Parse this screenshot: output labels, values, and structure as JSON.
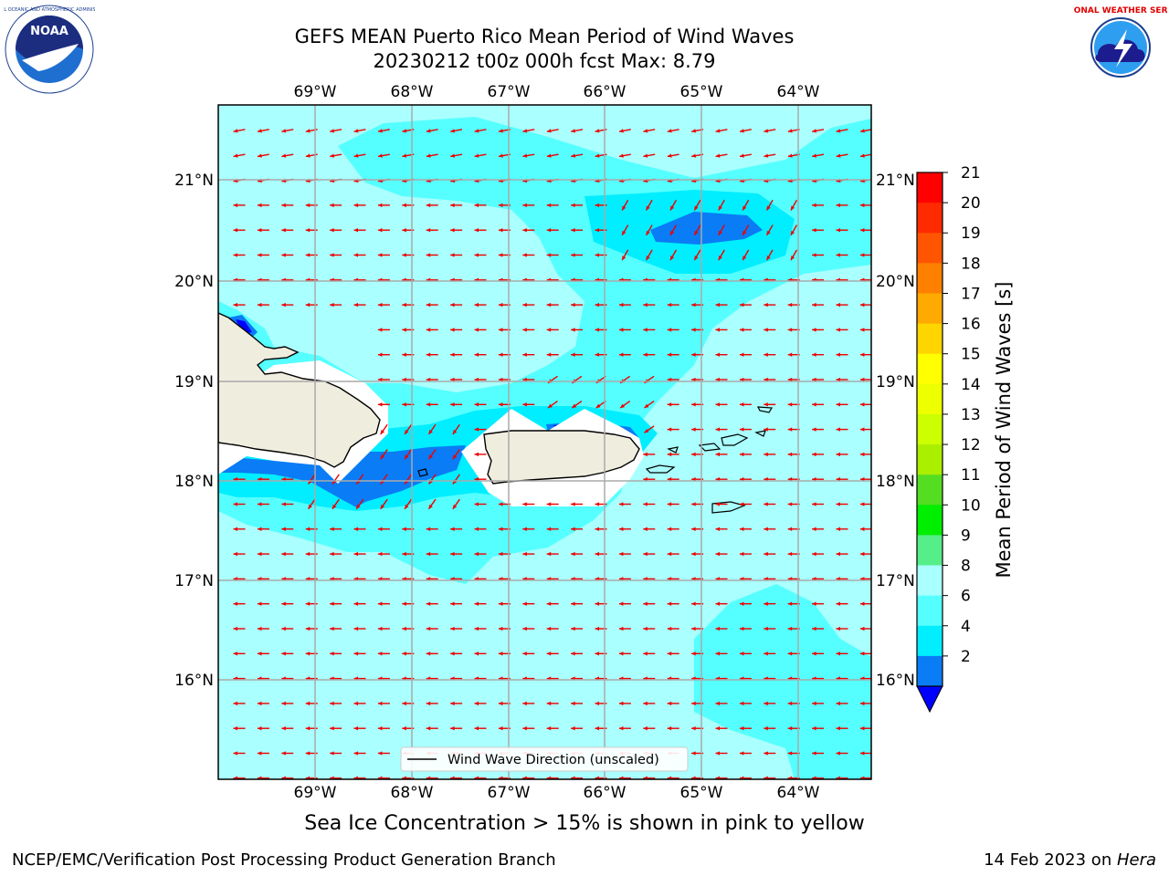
{
  "title": {
    "line1": "GEFS MEAN Puerto Rico Mean Period of Wind Waves",
    "line2": "20230212 t00z 000h fcst   Max: 8.79"
  },
  "map": {
    "lon_labels": [
      "69°W",
      "68°W",
      "67°W",
      "66°W",
      "65°W",
      "64°W"
    ],
    "lat_labels": [
      "21°N",
      "20°N",
      "19°N",
      "18°N",
      "17°N",
      "16°N"
    ],
    "colors": {
      "ocean_base": "#aaffff",
      "contour_8": "#55ffff",
      "contour_6": "#00eeff",
      "contour_4": "#0a7cf5",
      "contour_2": "#0000ff",
      "land": "#efedde",
      "arrow": "#ee0000"
    }
  },
  "legend": {
    "label": "Wind Wave Direction (unscaled)"
  },
  "colorbar": {
    "title": "Mean Period of Wind Waves [s]",
    "ticks": [
      "21",
      "20",
      "19",
      "18",
      "17",
      "16",
      "15",
      "14",
      "13",
      "12",
      "11",
      "10",
      "9",
      "8",
      "6",
      "4",
      "2"
    ],
    "colors_top_to_bottom": [
      "#ff0000",
      "#ff2a00",
      "#ff5500",
      "#ff8000",
      "#ffaa00",
      "#ffd500",
      "#ffff00",
      "#eeff00",
      "#ccff00",
      "#aaee00",
      "#55dd22",
      "#00ee00",
      "#55ee88",
      "#aaffff",
      "#55ffff",
      "#00eeff",
      "#0a7cf5"
    ],
    "extend_color": "#0000ff"
  },
  "note": "Sea Ice Concentration > 15% is shown in pink to yellow",
  "footer": {
    "left": "NCEP/EMC/Verification Post Processing Product Generation Branch",
    "right_prefix": "14 Feb 2023 on ",
    "right_machine": "Hera"
  },
  "logos": {
    "left": "NOAA",
    "right": "NATIONAL WEATHER SERVICE"
  }
}
